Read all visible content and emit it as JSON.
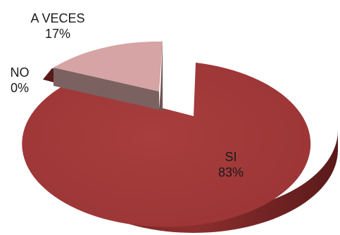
{
  "chart_data": {
    "type": "pie",
    "style": "3d-exploded",
    "slices": [
      {
        "label": "SI",
        "value": 83,
        "value_label": "83%",
        "color": "#A33A3A"
      },
      {
        "label": "NO",
        "value": 0,
        "value_label": "0%",
        "color": "#7A2626"
      },
      {
        "label": "A VECES",
        "value": 17,
        "value_label": "17%",
        "color": "#D6A4A4"
      }
    ],
    "legend": "none"
  }
}
